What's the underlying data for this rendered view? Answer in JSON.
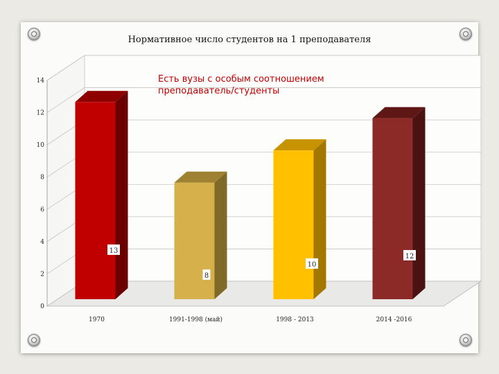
{
  "slide": {
    "title": "Нормативное число студентов на 1 преподавателя",
    "note": "Есть вузы с особым соотношением преподаватель/студенты"
  },
  "chart_data": {
    "type": "bar",
    "title": "Нормативное число студентов на 1 преподавателя",
    "categories": [
      "1970",
      "1991-1998 (май)",
      "1998 - 2013",
      "2014 -2016"
    ],
    "values": [
      13,
      8,
      10,
      12
    ],
    "value_labels": [
      "13",
      "8",
      "10",
      "12"
    ],
    "yticks": [
      0,
      2,
      4,
      6,
      8,
      10,
      12,
      14
    ],
    "ylim": [
      0,
      14
    ],
    "grid": true,
    "style": "3d-column",
    "colors": [
      "#c00000",
      "#d6b04a",
      "#ffc000",
      "#8b2a26"
    ],
    "top_colors": [
      "#8e0000",
      "#9e8232",
      "#c89300",
      "#5e1714"
    ],
    "side_colors": [
      "#6a0000",
      "#7f6a28",
      "#a37700",
      "#4a1210"
    ]
  }
}
